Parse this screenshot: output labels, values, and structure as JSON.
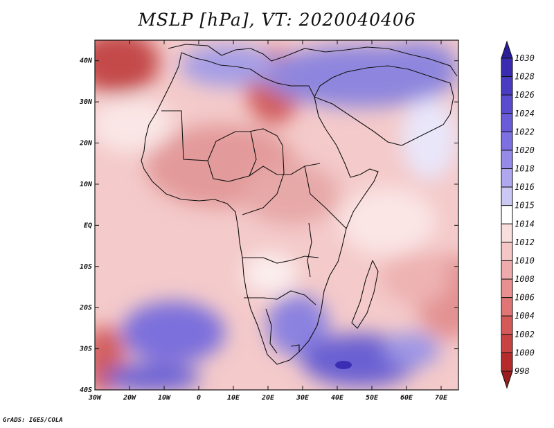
{
  "title": "MSLP [hPa], VT: 2020040406",
  "credit": "GrADS: IGES/COLA",
  "map": {
    "lon_range": [
      -30,
      75
    ],
    "lat_range": [
      -40,
      45
    ],
    "x_ticks": [
      "30W",
      "20W",
      "10W",
      "0",
      "10E",
      "20E",
      "30E",
      "40E",
      "50E",
      "60E",
      "70E"
    ],
    "y_ticks": [
      "40N",
      "30N",
      "20N",
      "10N",
      "EQ",
      "10S",
      "20S",
      "30S",
      "40S"
    ]
  },
  "colorbar": {
    "levels": [
      "1030",
      "1028",
      "1026",
      "1024",
      "1022",
      "1020",
      "1018",
      "1016",
      "1015",
      "1014",
      "1012",
      "1010",
      "1008",
      "1006",
      "1004",
      "1002",
      "1000",
      "998"
    ],
    "colors": [
      "#2a1e9a",
      "#3a2cb0",
      "#4a3cc2",
      "#5a4ccf",
      "#6a5cd9",
      "#7d70e0",
      "#958ae6",
      "#b0a8ee",
      "#ccc8f4",
      "#ffffff",
      "#f9dede",
      "#f5c6c6",
      "#efabab",
      "#e89090",
      "#e07575",
      "#d45a5a",
      "#c84242",
      "#b52b2b",
      "#9a1c1c"
    ]
  }
}
